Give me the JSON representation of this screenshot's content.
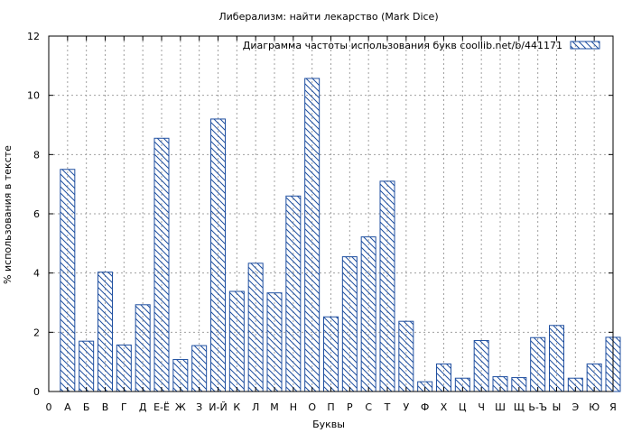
{
  "chart_data": {
    "type": "bar",
    "title": "Либерализм: найти лекарство (Mark Dice)",
    "xlabel": "Буквы",
    "ylabel": "% использования в тексте",
    "legend": "Диаграмма частоты использования букв  coollib.net/b/441171",
    "legend_position": "top-right",
    "ylim": [
      0,
      12
    ],
    "yticks": [
      "0",
      "2",
      "4",
      "6",
      "8",
      "10",
      "12"
    ],
    "grid": true,
    "x_tick_labels": [
      "0",
      "А",
      "Б",
      "В",
      "Г",
      "Д",
      "Е-Ё",
      "Ж",
      "З",
      "И-Й",
      "К",
      "Л",
      "М",
      "Н",
      "О",
      "П",
      "Р",
      "С",
      "Т",
      "У",
      "Ф",
      "Х",
      "Ц",
      "Ч",
      "Ш",
      "Щ",
      "Ь-Ъ",
      "Ы",
      "Э",
      "Ю",
      "Я"
    ],
    "categories": [
      "А",
      "Б",
      "В",
      "Г",
      "Д",
      "Е-Ё",
      "Ж",
      "З",
      "И-Й",
      "К",
      "Л",
      "М",
      "Н",
      "О",
      "П",
      "Р",
      "С",
      "Т",
      "У",
      "Ф",
      "Х",
      "Ц",
      "Ч",
      "Ш",
      "Щ",
      "Ь-Ъ",
      "Ы",
      "Э",
      "Ю",
      "Я"
    ],
    "values": [
      7.5,
      1.7,
      4.03,
      1.57,
      2.93,
      8.55,
      1.08,
      1.55,
      9.2,
      3.38,
      4.33,
      3.33,
      6.6,
      10.57,
      2.52,
      4.55,
      5.22,
      7.1,
      2.37,
      0.33,
      0.93,
      0.45,
      1.72,
      0.5,
      0.47,
      1.82,
      2.23,
      0.45,
      0.93,
      1.83
    ],
    "colors": {
      "bar_stroke": "#1f4fa0",
      "grid": "#a0a0a0",
      "axis": "#000000"
    }
  }
}
